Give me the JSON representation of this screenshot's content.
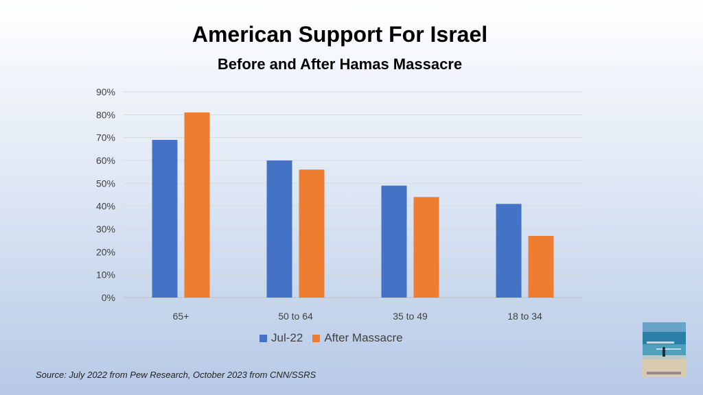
{
  "title": "American Support For Israel",
  "subtitle": "Before and After Hamas Massacre",
  "source": "Source: July 2022 from Pew Research, October 2023 from CNN/SSRS",
  "legend": [
    "Jul-22",
    "After Massacre"
  ],
  "chart_data": {
    "type": "bar",
    "title": "American Support For Israel",
    "subtitle": "Before and After Hamas Massacre",
    "categories": [
      "65+",
      "50 to 64",
      "35 to 49",
      "18 to 34"
    ],
    "series": [
      {
        "name": "Jul-22",
        "values": [
          69,
          60,
          49,
          41
        ],
        "color": "#4472C4"
      },
      {
        "name": "After Massacre",
        "values": [
          81,
          56,
          44,
          27
        ],
        "color": "#ED7D31"
      }
    ],
    "ylim": [
      0,
      90
    ],
    "yticks": [
      "0%",
      "10%",
      "20%",
      "30%",
      "40%",
      "50%",
      "60%",
      "70%",
      "80%",
      "90%"
    ],
    "grid": true,
    "legend_position": "bottom"
  },
  "colors": {
    "series1": "#4472C4",
    "series2": "#ED7D31"
  },
  "photo": {
    "icon": "beach-photo"
  }
}
